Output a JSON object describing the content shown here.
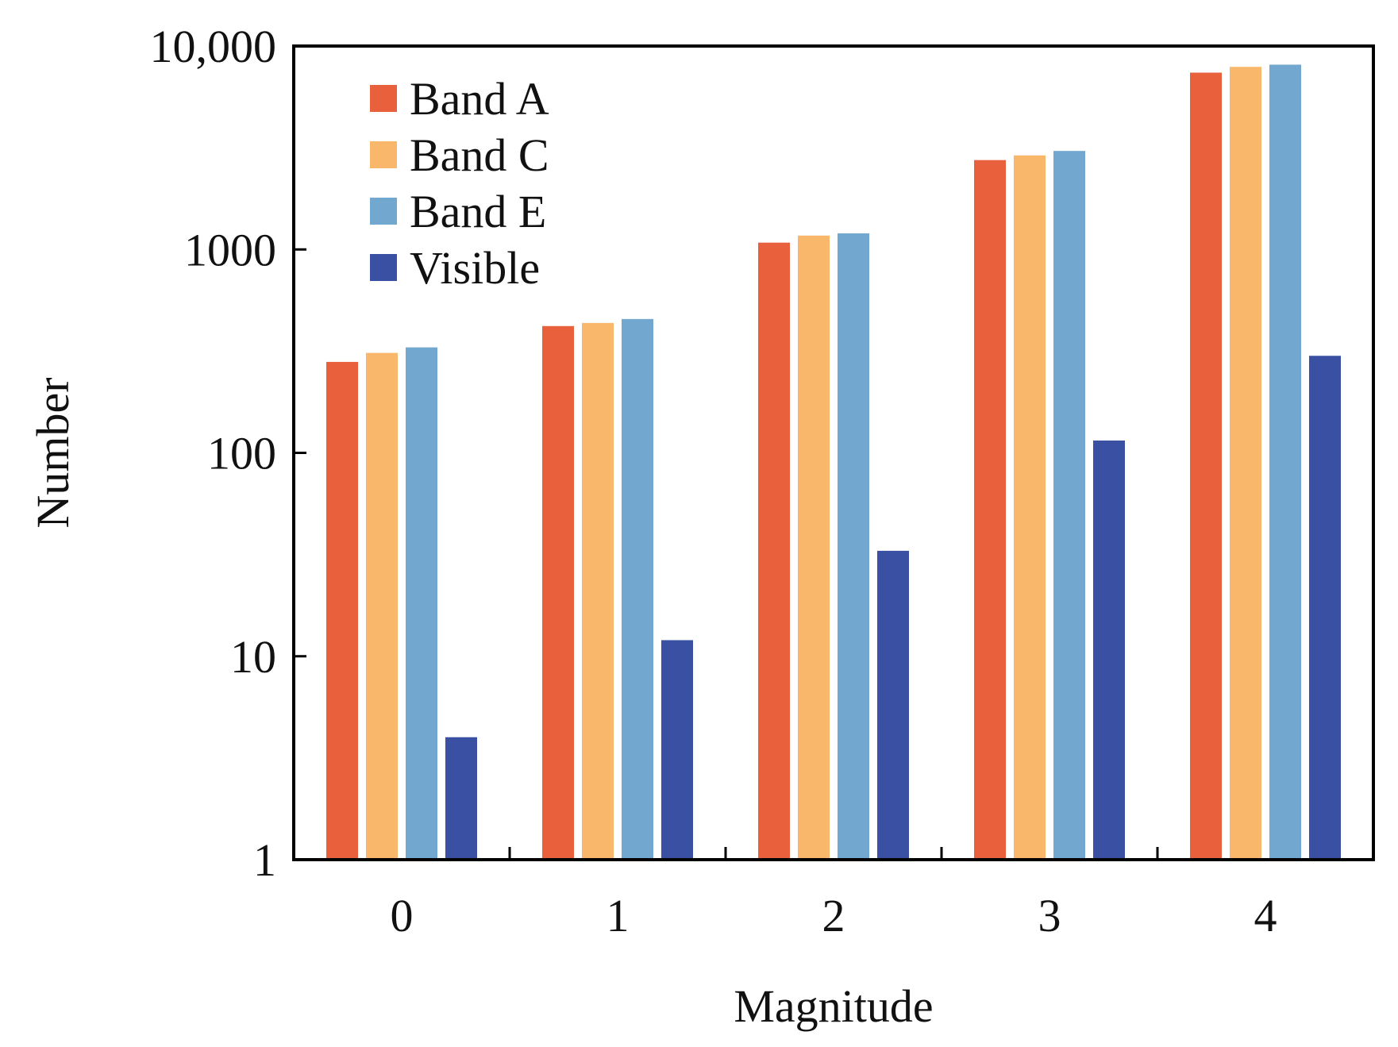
{
  "chart_data": {
    "type": "bar",
    "title": "",
    "xlabel": "Magnitude",
    "ylabel": "Number",
    "yscale": "log",
    "ylim": [
      1,
      10000
    ],
    "yticks": [
      1,
      10,
      100,
      1000,
      10000
    ],
    "ytick_labels": [
      "1",
      "10",
      "100",
      "1000",
      "10,000"
    ],
    "categories": [
      "0",
      "1",
      "2",
      "3",
      "4"
    ],
    "grid": false,
    "legend_position": "top-left",
    "series": [
      {
        "name": "Band A",
        "color": "#E8603C",
        "values": [
          280,
          420,
          1080,
          2750,
          7400
        ]
      },
      {
        "name": "Band C",
        "color": "#F9B76B",
        "values": [
          310,
          435,
          1170,
          2900,
          7900
        ]
      },
      {
        "name": "Band E",
        "color": "#72A8CF",
        "values": [
          330,
          455,
          1200,
          3050,
          8100
        ]
      },
      {
        "name": "Visible",
        "color": "#3A51A3",
        "values": [
          4,
          12,
          33,
          115,
          300
        ]
      }
    ]
  }
}
